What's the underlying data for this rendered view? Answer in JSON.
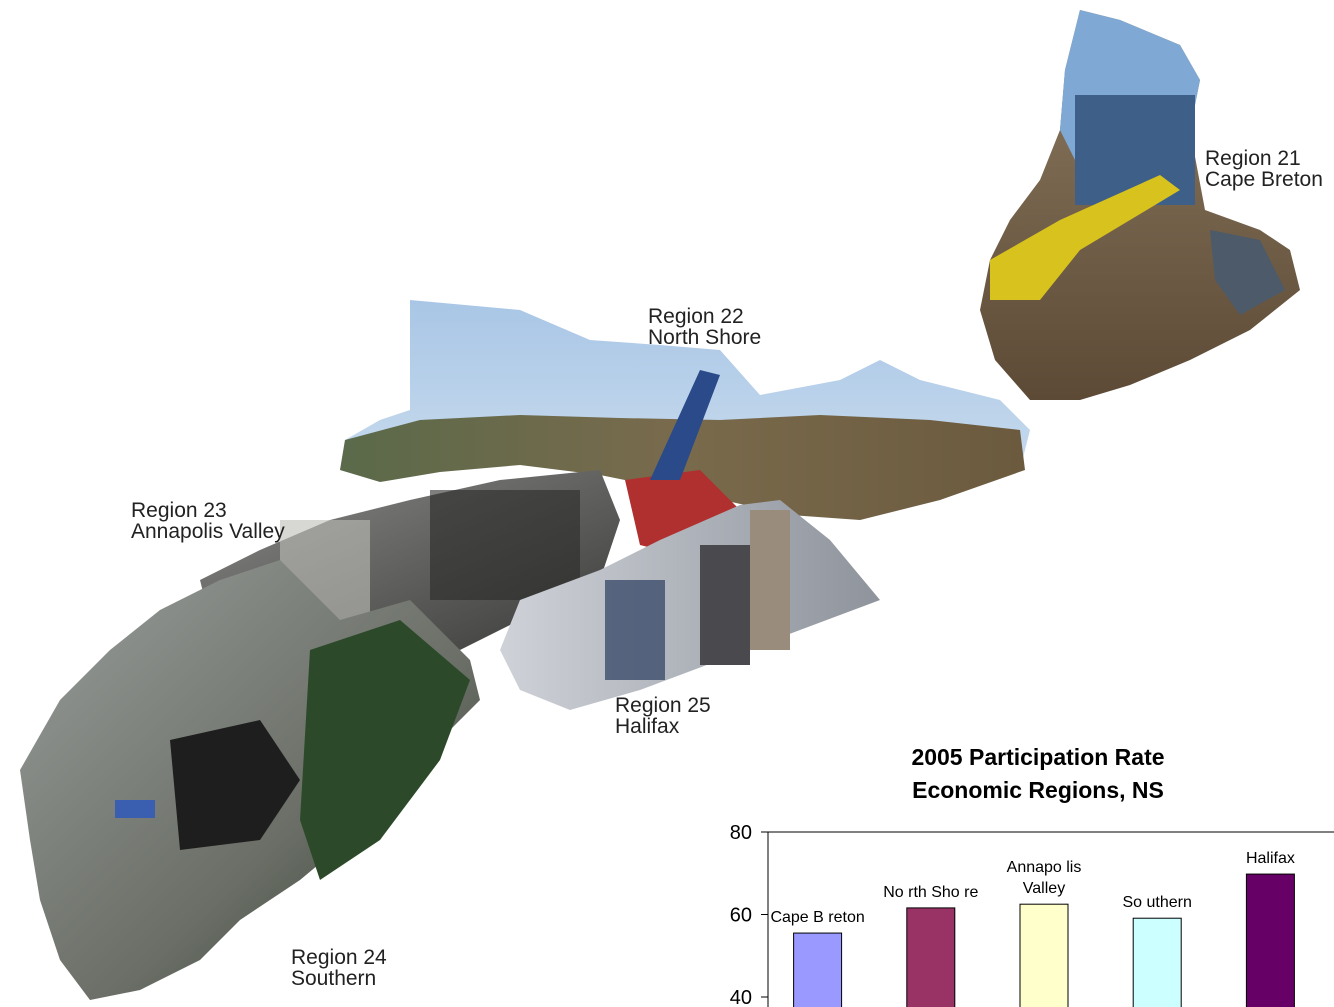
{
  "map": {
    "regions": [
      {
        "name": "Region 21",
        "sub": "Cape Breton"
      },
      {
        "name": "Region 22",
        "sub": "North Shore"
      },
      {
        "name": "Region 23",
        "sub": "Annapolis Valley"
      },
      {
        "name": "Region 24",
        "sub": "Southern"
      },
      {
        "name": "Region 25",
        "sub": "Halifax"
      }
    ]
  },
  "chart_data": {
    "type": "bar",
    "title": "2005 Participation Rate",
    "subtitle": "Economic Regions, NS",
    "categories": [
      "Cape Breton",
      "North Shore",
      "Annapolis Valley",
      "Southern",
      "Halifax"
    ],
    "category_labels": [
      [
        "Cape B reton"
      ],
      [
        "No rth Sho re"
      ],
      [
        "Annapo lis",
        "Valley"
      ],
      [
        "So uthern"
      ],
      [
        "Halifax"
      ]
    ],
    "values": [
      55.5,
      61.6,
      62.5,
      59.1,
      69.8
    ],
    "colors": [
      "#9999ff",
      "#993366",
      "#ffffcc",
      "#ccffff",
      "#660066"
    ],
    "ylim": [
      40,
      80
    ],
    "yticks": [
      40,
      60,
      80
    ],
    "xlabel": "",
    "ylabel": "",
    "grid": false,
    "legend": "none"
  }
}
